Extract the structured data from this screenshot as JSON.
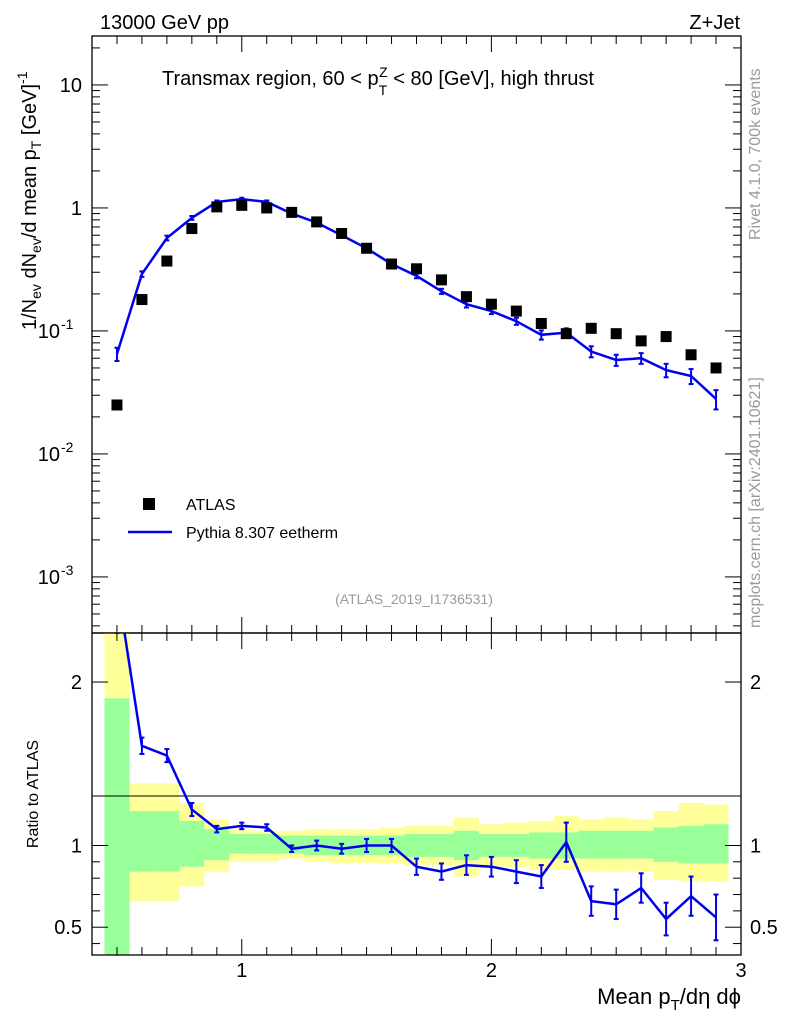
{
  "header": {
    "energy": "13000 GeV pp",
    "process": "Z+Jet"
  },
  "side_labels": {
    "rivet": "Rivet 4.1.0,  700k events",
    "mcplots": "mcplots.cern.ch [arXiv:2401.10621]"
  },
  "chart_data": [
    {
      "type": "scatter",
      "title": "Transmax region, 60 < pTZ < 80 [GeV], high thrust",
      "title_parts": {
        "pre": "Transmax region, 60 < p",
        "sup": "Z",
        "sub": "T",
        "post": " < 80 [GeV], high thrust"
      },
      "analysis_id": "(ATLAS_2019_I1736531)",
      "ylabel": "1/Nev dNev/d mean pT [GeV]^-1",
      "yscale": "log",
      "ylim": [
        0.00035,
        25
      ],
      "xlim": [
        0.4,
        3.0
      ],
      "ytick_labels": [
        "10^-3",
        "10^-2",
        "10^-1",
        "1",
        "10"
      ],
      "x": [
        0.5,
        0.6,
        0.7,
        0.8,
        0.9,
        1.0,
        1.1,
        1.2,
        1.3,
        1.4,
        1.5,
        1.6,
        1.7,
        1.8,
        1.9,
        2.0,
        2.1,
        2.2,
        2.3,
        2.4,
        2.5,
        2.6,
        2.7,
        2.8,
        2.9
      ],
      "series": [
        {
          "name": "ATLAS",
          "style": "markers",
          "values": [
            0.025,
            0.18,
            0.37,
            0.68,
            1.02,
            1.05,
            1.0,
            0.92,
            0.77,
            0.62,
            0.47,
            0.35,
            0.32,
            0.26,
            0.19,
            0.165,
            0.145,
            0.115,
            0.095,
            0.105,
            0.095,
            0.083,
            0.09,
            0.064,
            0.05
          ]
        },
        {
          "name": "Pythia 8.307 eetherm",
          "style": "line",
          "values": [
            0.065,
            0.29,
            0.57,
            0.83,
            1.12,
            1.18,
            1.12,
            0.9,
            0.76,
            0.6,
            0.47,
            0.35,
            0.28,
            0.21,
            0.165,
            0.145,
            0.12,
            0.093,
            0.097,
            0.068,
            0.058,
            0.06,
            0.048,
            0.043,
            0.028
          ],
          "err": [
            0.008,
            0.015,
            0.025,
            0.03,
            0.03,
            0.03,
            0.03,
            0.025,
            0.02,
            0.02,
            0.015,
            0.012,
            0.012,
            0.01,
            0.01,
            0.008,
            0.008,
            0.008,
            0.008,
            0.007,
            0.006,
            0.006,
            0.006,
            0.006,
            0.005
          ]
        }
      ],
      "legend": [
        "ATLAS",
        "Pythia 8.307 eetherm"
      ],
      "legend_position": "bottom-left"
    },
    {
      "type": "line",
      "title": "",
      "ylabel": "Ratio to ATLAS",
      "xlabel": "Mean pT/dη dϕ",
      "ylim": [
        0.33,
        2.3
      ],
      "xlim": [
        0.4,
        3.0
      ],
      "xtick_labels": [
        "1",
        "2",
        "3"
      ],
      "ytick_labels": [
        "0.5",
        "1",
        "2"
      ],
      "x": [
        0.5,
        0.6,
        0.7,
        0.8,
        0.9,
        1.0,
        1.1,
        1.2,
        1.3,
        1.4,
        1.5,
        1.6,
        1.7,
        1.8,
        1.9,
        2.0,
        2.1,
        2.2,
        2.3,
        2.4,
        2.5,
        2.6,
        2.7,
        2.8,
        2.9
      ],
      "ratio": [
        2.6,
        1.61,
        1.55,
        1.22,
        1.1,
        1.12,
        1.11,
        0.98,
        1.0,
        0.98,
        1.0,
        1.0,
        0.87,
        0.84,
        0.88,
        0.87,
        0.84,
        0.81,
        1.02,
        0.66,
        0.64,
        0.74,
        0.55,
        0.69,
        0.56
      ],
      "ratio_err": [
        0.3,
        0.05,
        0.04,
        0.04,
        0.02,
        0.02,
        0.02,
        0.02,
        0.03,
        0.03,
        0.04,
        0.04,
        0.05,
        0.05,
        0.06,
        0.06,
        0.07,
        0.07,
        0.12,
        0.09,
        0.09,
        0.09,
        0.1,
        0.12,
        0.14
      ],
      "band_green": [
        [
          0.3,
          1.9
        ],
        [
          0.84,
          1.21
        ],
        [
          0.84,
          1.21
        ],
        [
          0.87,
          1.15
        ],
        [
          0.91,
          1.1
        ],
        [
          0.95,
          1.07
        ],
        [
          0.95,
          1.07
        ],
        [
          0.95,
          1.06
        ],
        [
          0.94,
          1.06
        ],
        [
          0.94,
          1.06
        ],
        [
          0.94,
          1.06
        ],
        [
          0.94,
          1.06
        ],
        [
          0.93,
          1.07
        ],
        [
          0.93,
          1.07
        ],
        [
          0.91,
          1.09
        ],
        [
          0.93,
          1.07
        ],
        [
          0.93,
          1.07
        ],
        [
          0.92,
          1.08
        ],
        [
          0.92,
          1.08
        ],
        [
          0.92,
          1.09
        ],
        [
          0.92,
          1.09
        ],
        [
          0.92,
          1.09
        ],
        [
          0.9,
          1.11
        ],
        [
          0.89,
          1.12
        ],
        [
          0.89,
          1.13
        ]
      ],
      "band_yellow": [
        [
          0.3,
          2.4
        ],
        [
          0.66,
          1.38
        ],
        [
          0.66,
          1.38
        ],
        [
          0.75,
          1.26
        ],
        [
          0.84,
          1.16
        ],
        [
          0.9,
          1.1
        ],
        [
          0.9,
          1.09
        ],
        [
          0.92,
          1.09
        ],
        [
          0.9,
          1.1
        ],
        [
          0.89,
          1.1
        ],
        [
          0.89,
          1.1
        ],
        [
          0.89,
          1.11
        ],
        [
          0.88,
          1.12
        ],
        [
          0.88,
          1.12
        ],
        [
          0.81,
          1.17
        ],
        [
          0.87,
          1.13
        ],
        [
          0.87,
          1.14
        ],
        [
          0.85,
          1.15
        ],
        [
          0.85,
          1.18
        ],
        [
          0.84,
          1.16
        ],
        [
          0.84,
          1.17
        ],
        [
          0.84,
          1.16
        ],
        [
          0.79,
          1.21
        ],
        [
          0.78,
          1.26
        ],
        [
          0.78,
          1.25
        ]
      ],
      "reference_line": 1
    }
  ]
}
